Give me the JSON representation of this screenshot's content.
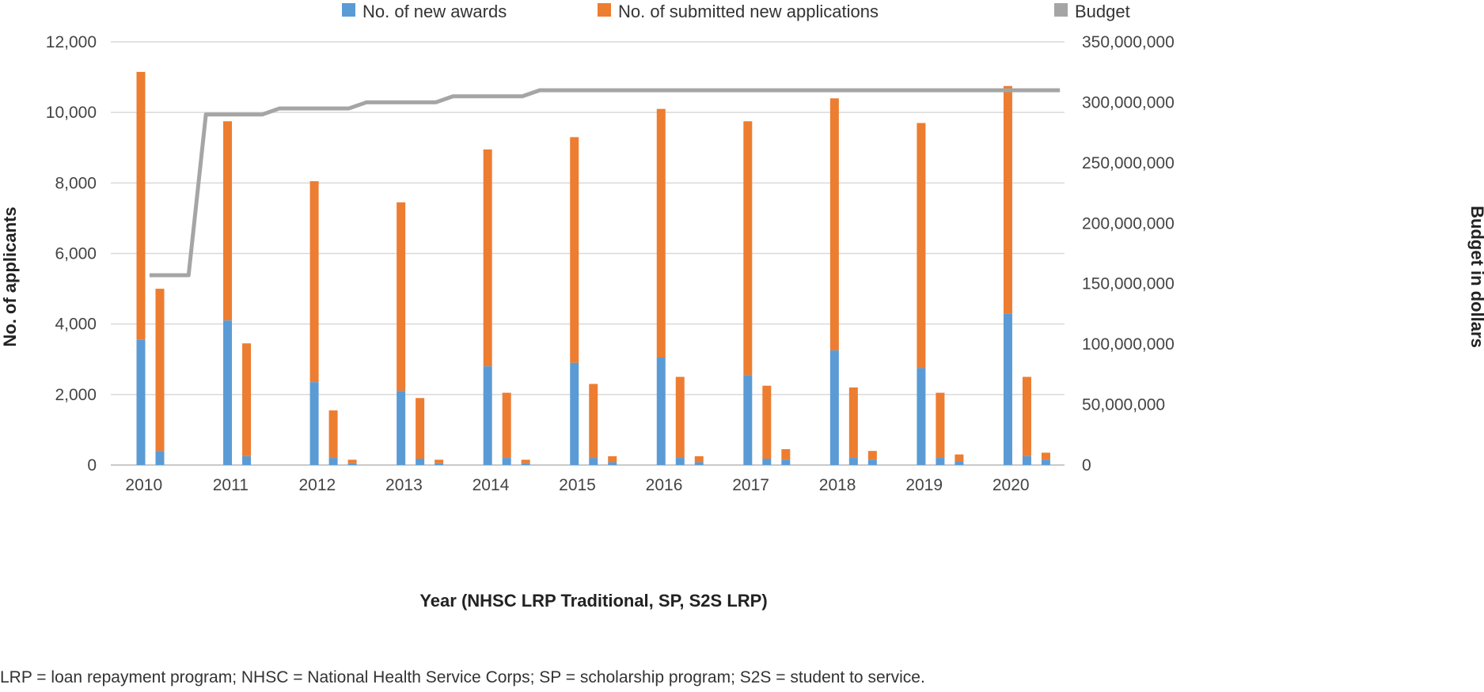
{
  "chart_data": {
    "type": "bar",
    "xlabel": "Year (NHSC LRP Traditional, SP, S2S LRP)",
    "ylabel": "No. of applicants",
    "y2label": "Budget in dollars",
    "ylim": [
      0,
      12000
    ],
    "y2lim": [
      0,
      350000000
    ],
    "yticks": [
      "0",
      "2,000",
      "4,000",
      "6,000",
      "8,000",
      "10,000",
      "12,000"
    ],
    "y2ticks": [
      "0",
      "50,000,000",
      "100,000,000",
      "150,000,000",
      "200,000,000",
      "250,000,000",
      "300,000,000",
      "350,000,000"
    ],
    "categories": [
      "2010",
      "2011",
      "2012",
      "2013",
      "2014",
      "2015",
      "2016",
      "2017",
      "2018",
      "2019",
      "2020"
    ],
    "programs": [
      "NHSC LRP Traditional",
      "SP",
      "S2S LRP"
    ],
    "legend_position": "top",
    "grid": true,
    "series": [
      {
        "name": "No. of new awards",
        "color": "#5b9bd5",
        "values": [
          [
            3550,
            400,
            0
          ],
          [
            4100,
            250,
            0
          ],
          [
            2350,
            200,
            50
          ],
          [
            2100,
            180,
            50
          ],
          [
            2800,
            200,
            50
          ],
          [
            2900,
            200,
            80
          ],
          [
            3050,
            200,
            80
          ],
          [
            2550,
            180,
            150
          ],
          [
            3250,
            200,
            150
          ],
          [
            2750,
            200,
            100
          ],
          [
            4300,
            250,
            150
          ]
        ]
      },
      {
        "name": "No. of submitted new applications",
        "color": "#ed7d31",
        "values": [
          [
            11150,
            5000,
            0
          ],
          [
            9750,
            3450,
            0
          ],
          [
            8050,
            1550,
            150
          ],
          [
            7450,
            1900,
            150
          ],
          [
            8950,
            2050,
            150
          ],
          [
            9300,
            2300,
            250
          ],
          [
            10100,
            2500,
            250
          ],
          [
            9750,
            2250,
            450
          ],
          [
            10400,
            2200,
            400
          ],
          [
            9700,
            2050,
            300
          ],
          [
            10750,
            2500,
            350
          ]
        ]
      },
      {
        "name": "Budget",
        "color": "#a5a5a5",
        "type": "line",
        "axis": "right",
        "x": [
          2010.1,
          2010.55,
          2010.75,
          2011.4,
          2011.6,
          2012.4,
          2012.6,
          2013.4,
          2013.6,
          2014.4,
          2014.6,
          2020.6
        ],
        "values": [
          157000000,
          157000000,
          290000000,
          290000000,
          295000000,
          295000000,
          300000000,
          300000000,
          305000000,
          305000000,
          310000000,
          310000000
        ]
      }
    ],
    "footnote": "LRP = loan repayment program; NHSC = National Health Service Corps; SP = scholarship program; S2S = student to service."
  }
}
